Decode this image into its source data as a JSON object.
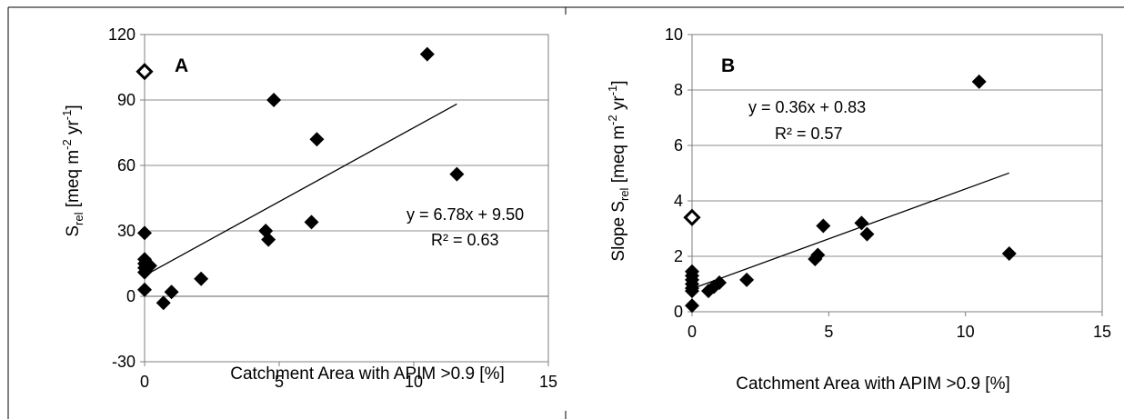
{
  "chart_data": [
    {
      "type": "scatter",
      "panel_label": "A",
      "xlabel": "Catchment Area with APIM >0.9 [%]",
      "ylabel": {
        "main": "S",
        "sub": "rel",
        "rest": " [meq m",
        "sup1": "-2",
        "mid": " yr",
        "sup2": "-1",
        "end": "]"
      },
      "xlim": [
        0,
        15
      ],
      "ylim": [
        -30,
        120
      ],
      "xticks": [
        0,
        5,
        10,
        15
      ],
      "yticks": [
        -30,
        0,
        30,
        60,
        90,
        120
      ],
      "grid": "horizontal",
      "points": [
        {
          "x": 0.0,
          "y": 29
        },
        {
          "x": 0.0,
          "y": 17
        },
        {
          "x": 0.0,
          "y": 15
        },
        {
          "x": 0.0,
          "y": 13
        },
        {
          "x": 0.0,
          "y": 11
        },
        {
          "x": 0.2,
          "y": 14
        },
        {
          "x": 0.0,
          "y": 3
        },
        {
          "x": 0.7,
          "y": -3
        },
        {
          "x": 1.0,
          "y": 2
        },
        {
          "x": 2.1,
          "y": 8
        },
        {
          "x": 4.5,
          "y": 30
        },
        {
          "x": 4.6,
          "y": 26
        },
        {
          "x": 4.8,
          "y": 90
        },
        {
          "x": 6.2,
          "y": 34
        },
        {
          "x": 6.4,
          "y": 72
        },
        {
          "x": 10.5,
          "y": 111
        },
        {
          "x": 11.6,
          "y": 56
        }
      ],
      "outliers": [
        {
          "x": 0.0,
          "y": 103
        }
      ],
      "trendline": {
        "slope": 6.78,
        "intercept": 9.5,
        "x_range": [
          0,
          11.6
        ]
      },
      "equation": "y = 6.78x + 9.50",
      "r_squared": "R² = 0.63"
    },
    {
      "type": "scatter",
      "panel_label": "B",
      "xlabel": "Catchment Area  with APIM >0.9 [%]",
      "ylabel": {
        "main": "Slope S",
        "sub": "rel",
        "rest": " [meq m",
        "sup1": "-2",
        "mid": " yr",
        "sup2": "-1",
        "end": "]"
      },
      "xlim": [
        0,
        15
      ],
      "ylim": [
        0,
        10
      ],
      "xticks": [
        0,
        5,
        10,
        15
      ],
      "yticks": [
        0,
        2,
        4,
        6,
        8,
        10
      ],
      "grid": "horizontal",
      "points": [
        {
          "x": 0.0,
          "y": 1.45
        },
        {
          "x": 0.0,
          "y": 1.3
        },
        {
          "x": 0.0,
          "y": 1.15
        },
        {
          "x": 0.0,
          "y": 1.0
        },
        {
          "x": 0.0,
          "y": 0.85
        },
        {
          "x": 0.0,
          "y": 0.75
        },
        {
          "x": 0.0,
          "y": 0.22
        },
        {
          "x": 0.6,
          "y": 0.75
        },
        {
          "x": 0.8,
          "y": 0.9
        },
        {
          "x": 1.0,
          "y": 1.05
        },
        {
          "x": 2.0,
          "y": 1.15
        },
        {
          "x": 4.5,
          "y": 1.9
        },
        {
          "x": 4.6,
          "y": 2.05
        },
        {
          "x": 4.8,
          "y": 3.1
        },
        {
          "x": 6.2,
          "y": 3.2
        },
        {
          "x": 6.4,
          "y": 2.8
        },
        {
          "x": 10.5,
          "y": 8.3
        },
        {
          "x": 11.6,
          "y": 2.1
        }
      ],
      "outliers": [
        {
          "x": 0.0,
          "y": 3.4
        }
      ],
      "trendline": {
        "slope": 0.36,
        "intercept": 0.83,
        "x_range": [
          0,
          11.6
        ]
      },
      "equation": "y = 0.36x + 0.83",
      "r_squared": "R² = 0.57"
    }
  ]
}
